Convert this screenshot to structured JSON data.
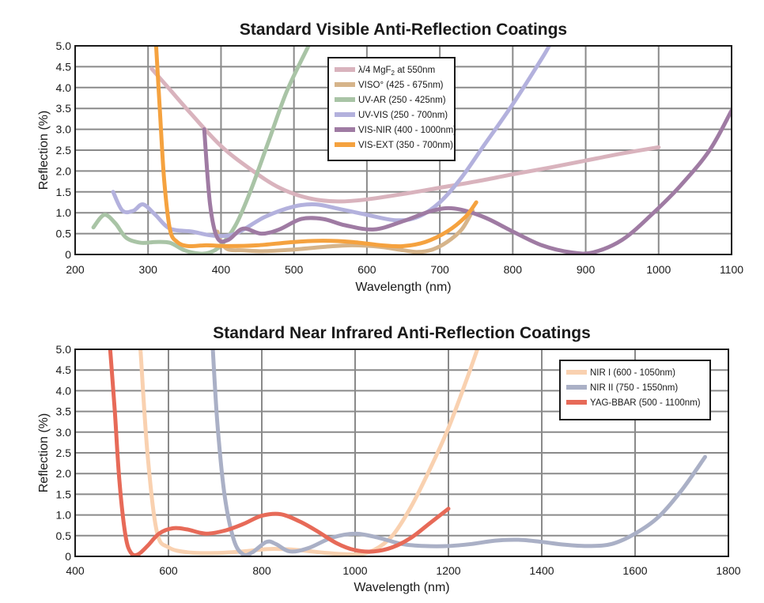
{
  "chart_data": [
    {
      "type": "line",
      "title": "Standard Visible Anti-Reflection Coatings",
      "xlabel": "Wavelength (nm)",
      "ylabel": "Reflection (%)",
      "xlim": [
        200,
        1100
      ],
      "ylim": [
        0,
        5.0
      ],
      "x_ticks": [
        200,
        300,
        400,
        500,
        600,
        700,
        800,
        900,
        1000,
        1100
      ],
      "y_tick_labels": [
        "0",
        "0.5",
        "1.0",
        "1.5",
        "2.0",
        "2.5",
        "3.0",
        "3.5",
        "4.0",
        "4.5",
        "5.0"
      ],
      "grid": true,
      "legend_position": "top-center",
      "series": [
        {
          "name": "λ/4 MgF2 at 550nm",
          "legend_main": "λ/4 MgF",
          "legend_sub": "2",
          "legend_tail": " at 550nm",
          "color": "#d9b3bd",
          "points": [
            [
              305,
              4.45
            ],
            [
              330,
              3.95
            ],
            [
              360,
              3.35
            ],
            [
              400,
              2.6
            ],
            [
              440,
              2.05
            ],
            [
              480,
              1.6
            ],
            [
              520,
              1.35
            ],
            [
              560,
              1.27
            ],
            [
              600,
              1.32
            ],
            [
              650,
              1.45
            ],
            [
              700,
              1.6
            ],
            [
              750,
              1.75
            ],
            [
              800,
              1.92
            ],
            [
              850,
              2.08
            ],
            [
              900,
              2.25
            ],
            [
              950,
              2.42
            ],
            [
              1000,
              2.57
            ]
          ]
        },
        {
          "name": "VISO° (425 - 675nm)",
          "color": "#d6b48a",
          "points": [
            [
              395,
              0.55
            ],
            [
              400,
              0.3
            ],
            [
              410,
              0.12
            ],
            [
              430,
              0.1
            ],
            [
              460,
              0.08
            ],
            [
              500,
              0.12
            ],
            [
              540,
              0.18
            ],
            [
              580,
              0.22
            ],
            [
              620,
              0.18
            ],
            [
              650,
              0.1
            ],
            [
              670,
              0.06
            ],
            [
              690,
              0.12
            ],
            [
              710,
              0.3
            ],
            [
              730,
              0.6
            ],
            [
              745,
              1.05
            ]
          ]
        },
        {
          "name": "UV-AR (250 - 425nm)",
          "color": "#a9c4a6",
          "points": [
            [
              225,
              0.65
            ],
            [
              240,
              0.95
            ],
            [
              255,
              0.75
            ],
            [
              270,
              0.4
            ],
            [
              290,
              0.28
            ],
            [
              310,
              0.3
            ],
            [
              330,
              0.28
            ],
            [
              350,
              0.1
            ],
            [
              370,
              0.02
            ],
            [
              385,
              0.05
            ],
            [
              400,
              0.22
            ],
            [
              420,
              0.7
            ],
            [
              440,
              1.5
            ],
            [
              465,
              2.7
            ],
            [
              490,
              3.9
            ],
            [
              520,
              5.0
            ]
          ]
        },
        {
          "name": "UV-VIS (250 - 700nm)",
          "color": "#b3b1dd",
          "points": [
            [
              252,
              1.5
            ],
            [
              265,
              1.05
            ],
            [
              280,
              1.05
            ],
            [
              293,
              1.2
            ],
            [
              310,
              0.95
            ],
            [
              330,
              0.62
            ],
            [
              360,
              0.55
            ],
            [
              390,
              0.45
            ],
            [
              420,
              0.5
            ],
            [
              460,
              0.9
            ],
            [
              500,
              1.15
            ],
            [
              530,
              1.2
            ],
            [
              560,
              1.1
            ],
            [
              600,
              0.95
            ],
            [
              640,
              0.82
            ],
            [
              670,
              0.9
            ],
            [
              700,
              1.25
            ],
            [
              730,
              1.85
            ],
            [
              760,
              2.6
            ],
            [
              800,
              3.6
            ],
            [
              840,
              4.7
            ],
            [
              850,
              5.0
            ]
          ]
        },
        {
          "name": "VIS-NIR (400 - 1000nm)",
          "color": "#9f7ba3",
          "points": [
            [
              377,
              3.0
            ],
            [
              385,
              1.2
            ],
            [
              395,
              0.4
            ],
            [
              410,
              0.35
            ],
            [
              430,
              0.62
            ],
            [
              455,
              0.5
            ],
            [
              480,
              0.6
            ],
            [
              510,
              0.85
            ],
            [
              540,
              0.85
            ],
            [
              570,
              0.7
            ],
            [
              610,
              0.6
            ],
            [
              650,
              0.8
            ],
            [
              690,
              1.05
            ],
            [
              720,
              1.1
            ],
            [
              760,
              0.9
            ],
            [
              800,
              0.55
            ],
            [
              840,
              0.22
            ],
            [
              880,
              0.05
            ],
            [
              910,
              0.05
            ],
            [
              950,
              0.35
            ],
            [
              990,
              0.95
            ],
            [
              1030,
              1.65
            ],
            [
              1070,
              2.5
            ],
            [
              1100,
              3.45
            ]
          ]
        },
        {
          "name": "VIS-EXT (350 - 700nm)",
          "color": "#f5a23f",
          "points": [
            [
              311,
              5.0
            ],
            [
              316,
              3.5
            ],
            [
              322,
              1.8
            ],
            [
              330,
              0.6
            ],
            [
              340,
              0.3
            ],
            [
              355,
              0.2
            ],
            [
              380,
              0.22
            ],
            [
              410,
              0.2
            ],
            [
              450,
              0.22
            ],
            [
              500,
              0.3
            ],
            [
              540,
              0.33
            ],
            [
              580,
              0.3
            ],
            [
              620,
              0.22
            ],
            [
              650,
              0.2
            ],
            [
              680,
              0.3
            ],
            [
              710,
              0.55
            ],
            [
              735,
              0.9
            ],
            [
              750,
              1.25
            ]
          ]
        }
      ]
    },
    {
      "type": "line",
      "title": "Standard Near Infrared Anti-Reflection Coatings",
      "xlabel": "Wavelength (nm)",
      "ylabel": "Reflection (%)",
      "xlim": [
        400,
        1800
      ],
      "ylim": [
        0,
        5.0
      ],
      "x_ticks": [
        400,
        600,
        800,
        1000,
        1200,
        1400,
        1600,
        1800
      ],
      "y_tick_labels": [
        "0",
        "0.5",
        "1.0",
        "1.5",
        "2.0",
        "2.5",
        "3.0",
        "3.5",
        "4.0",
        "4.5",
        "5.0"
      ],
      "grid": true,
      "legend_position": "top-right",
      "series": [
        {
          "name": "NIR I (600 - 1050nm)",
          "color": "#f9d1b0",
          "points": [
            [
              540,
              5.0
            ],
            [
              555,
              2.5
            ],
            [
              575,
              0.6
            ],
            [
              600,
              0.22
            ],
            [
              640,
              0.1
            ],
            [
              700,
              0.08
            ],
            [
              760,
              0.12
            ],
            [
              820,
              0.18
            ],
            [
              880,
              0.15
            ],
            [
              940,
              0.08
            ],
            [
              1000,
              0.05
            ],
            [
              1040,
              0.15
            ],
            [
              1080,
              0.5
            ],
            [
              1120,
              1.2
            ],
            [
              1160,
              2.1
            ],
            [
              1200,
              3.1
            ],
            [
              1240,
              4.3
            ],
            [
              1262,
              5.0
            ]
          ]
        },
        {
          "name": "NIR II (750 - 1550nm)",
          "color": "#aab0c6",
          "points": [
            [
              695,
              5.0
            ],
            [
              705,
              3.2
            ],
            [
              720,
              1.5
            ],
            [
              740,
              0.4
            ],
            [
              760,
              0.05
            ],
            [
              780,
              0.1
            ],
            [
              810,
              0.35
            ],
            [
              830,
              0.3
            ],
            [
              860,
              0.12
            ],
            [
              900,
              0.2
            ],
            [
              950,
              0.45
            ],
            [
              1000,
              0.55
            ],
            [
              1050,
              0.45
            ],
            [
              1100,
              0.3
            ],
            [
              1150,
              0.25
            ],
            [
              1200,
              0.25
            ],
            [
              1250,
              0.3
            ],
            [
              1300,
              0.38
            ],
            [
              1350,
              0.4
            ],
            [
              1400,
              0.35
            ],
            [
              1450,
              0.28
            ],
            [
              1500,
              0.25
            ],
            [
              1550,
              0.3
            ],
            [
              1600,
              0.55
            ],
            [
              1650,
              0.95
            ],
            [
              1700,
              1.6
            ],
            [
              1750,
              2.4
            ]
          ]
        },
        {
          "name": "YAG-BBAR (500 - 1100nm)",
          "color": "#e76a58",
          "points": [
            [
              475,
              5.0
            ],
            [
              485,
              3.5
            ],
            [
              495,
              1.8
            ],
            [
              508,
              0.5
            ],
            [
              520,
              0.08
            ],
            [
              535,
              0.05
            ],
            [
              555,
              0.25
            ],
            [
              580,
              0.55
            ],
            [
              610,
              0.68
            ],
            [
              640,
              0.65
            ],
            [
              680,
              0.55
            ],
            [
              720,
              0.62
            ],
            [
              760,
              0.78
            ],
            [
              800,
              0.98
            ],
            [
              840,
              1.02
            ],
            [
              880,
              0.85
            ],
            [
              920,
              0.6
            ],
            [
              960,
              0.32
            ],
            [
              1000,
              0.15
            ],
            [
              1040,
              0.12
            ],
            [
              1080,
              0.22
            ],
            [
              1120,
              0.45
            ],
            [
              1160,
              0.8
            ],
            [
              1200,
              1.15
            ]
          ]
        }
      ]
    }
  ]
}
